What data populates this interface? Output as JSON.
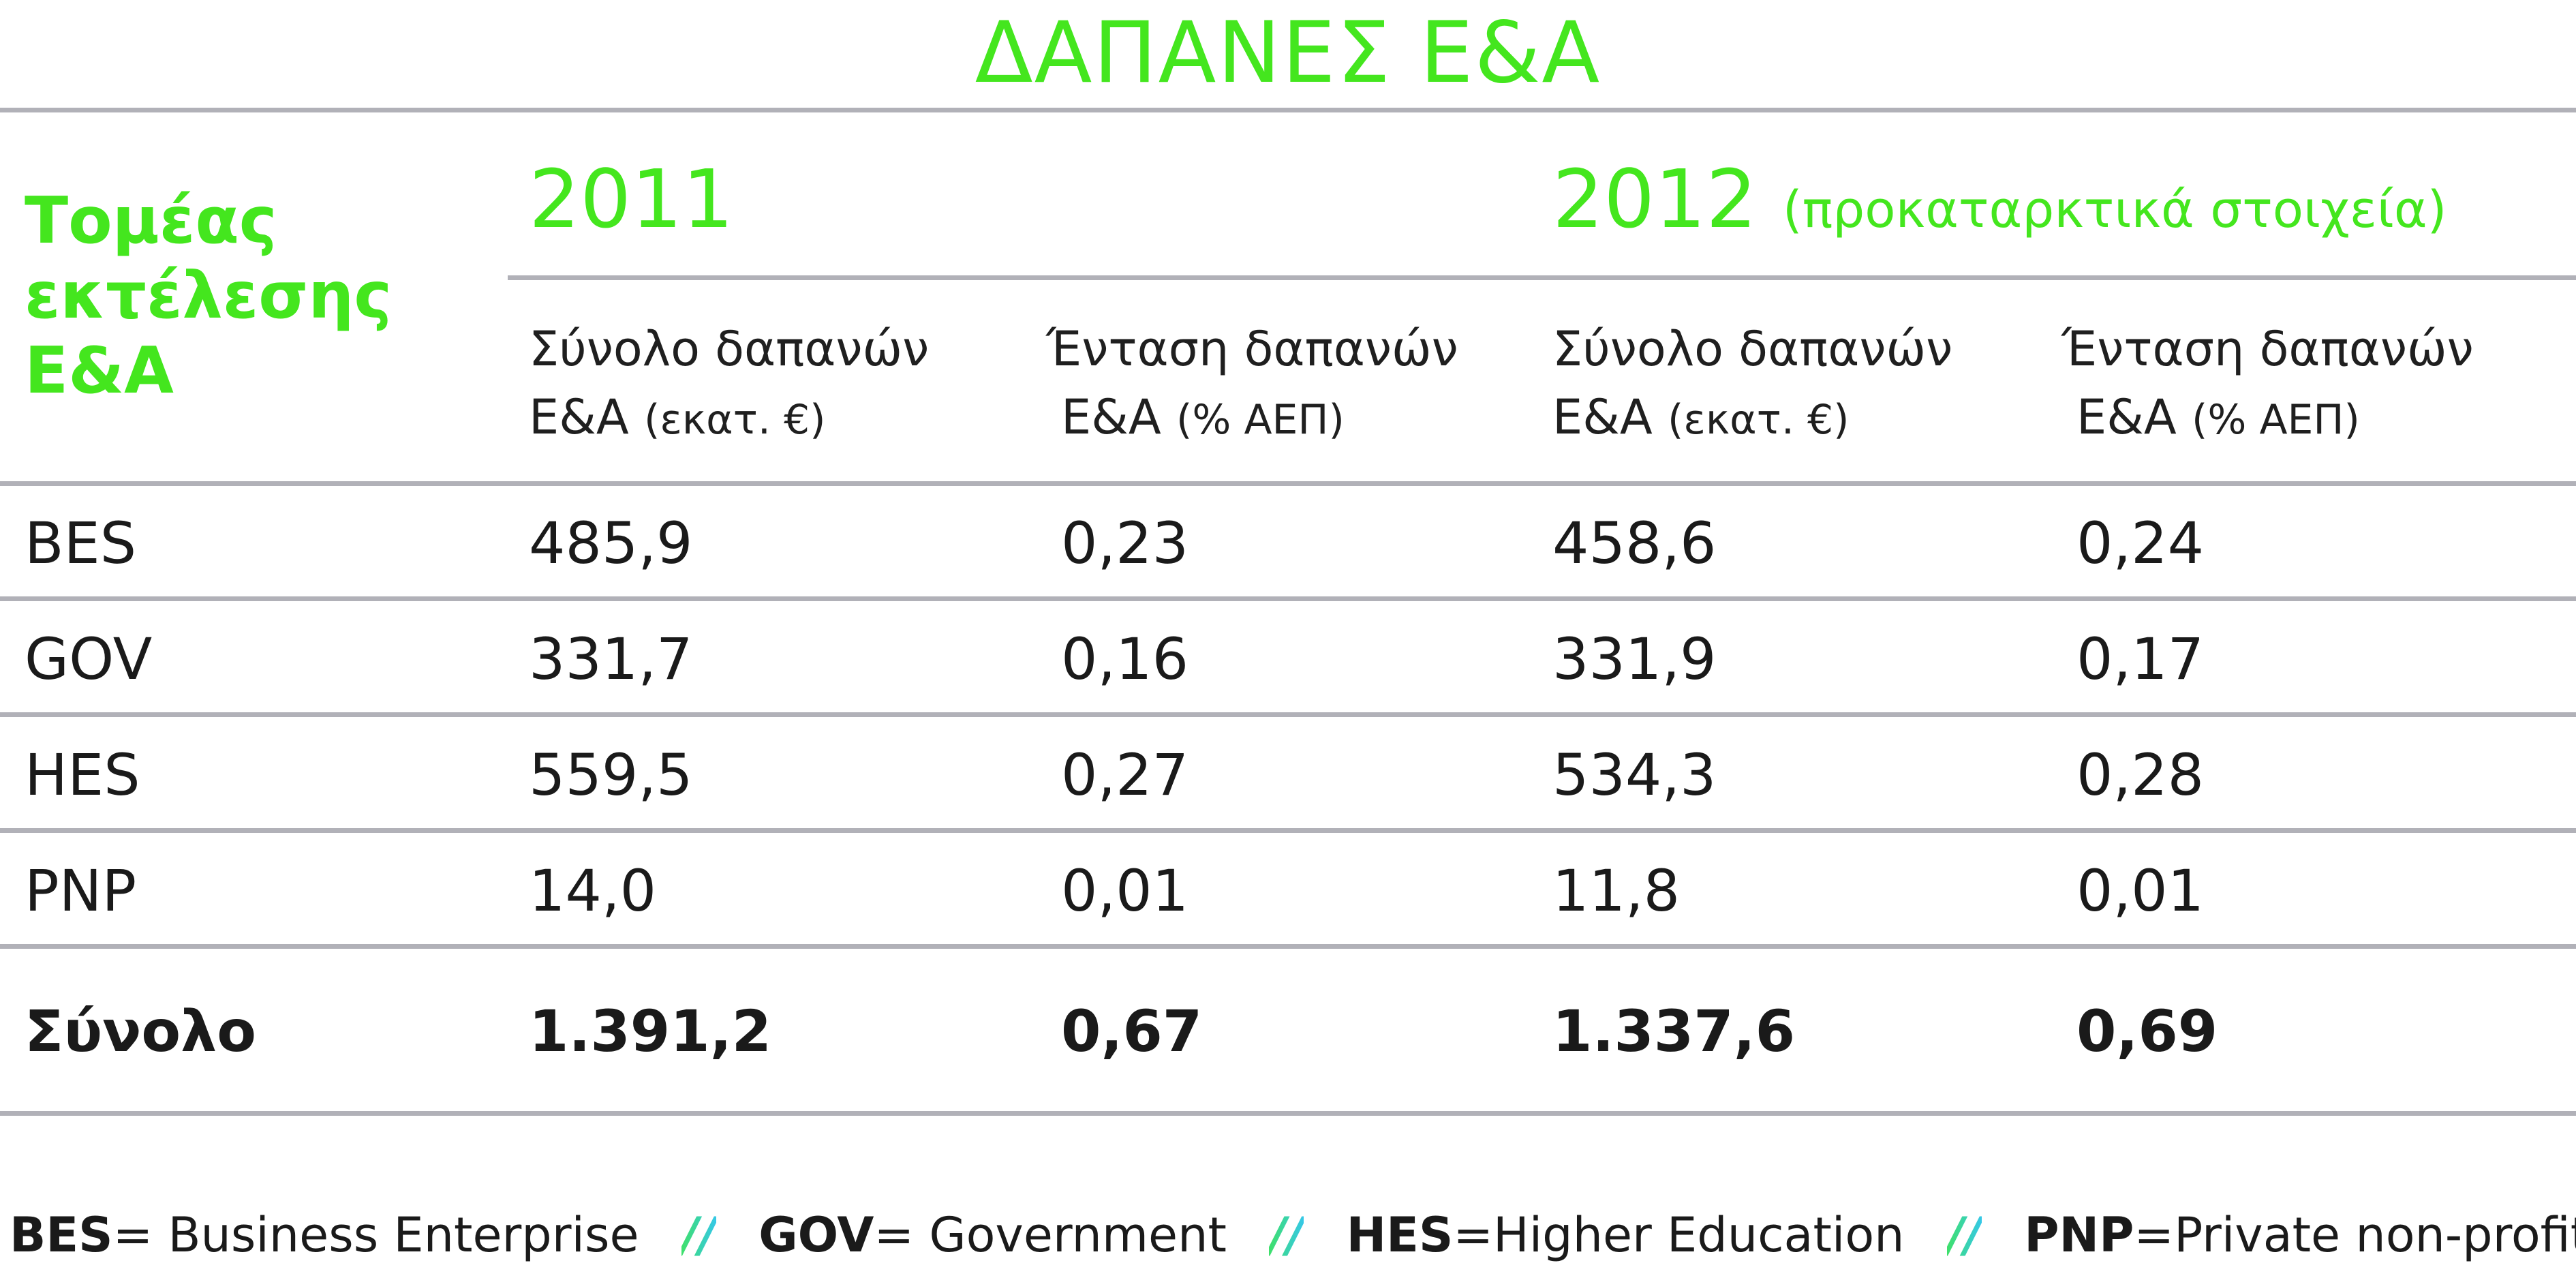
{
  "title": "ΔΑΠΑΝΕΣ Ε&Α",
  "sector_heading": [
    "Τομέας",
    "εκτέλεσης",
    "Ε&Α"
  ],
  "years": [
    {
      "year": "2011",
      "note": ""
    },
    {
      "year": "2012",
      "note": "(προκαταρκτικά στοιχεία)"
    }
  ],
  "column_headers": [
    {
      "line1": "Σύνολο δαπανών",
      "line2_main": "Ε&Α",
      "line2_small": "(εκατ. €)"
    },
    {
      "line1": "Ένταση δαπανών",
      "line2_main": "Ε&Α",
      "line2_small": "(% ΑΕΠ)"
    },
    {
      "line1": "Σύνολο δαπανών",
      "line2_main": "Ε&Α",
      "line2_small": "(εκατ. €)"
    },
    {
      "line1": "Ένταση δαπανών",
      "line2_main": "Ε&Α",
      "line2_small": "(% ΑΕΠ)"
    }
  ],
  "rows": [
    {
      "sector": "BES",
      "v2011_total": "485,9",
      "v2011_intensity": "0,23",
      "v2012_total": "458,6",
      "v2012_intensity": "0,24"
    },
    {
      "sector": "GOV",
      "v2011_total": "331,7",
      "v2011_intensity": "0,16",
      "v2012_total": "331,9",
      "v2012_intensity": "0,17"
    },
    {
      "sector": "HES",
      "v2011_total": "559,5",
      "v2011_intensity": "0,27",
      "v2012_total": "534,3",
      "v2012_intensity": "0,28"
    },
    {
      "sector": "PNP",
      "v2011_total": "14,0",
      "v2011_intensity": "0,01",
      "v2012_total": "11,8",
      "v2012_intensity": "0,01"
    }
  ],
  "total_row": {
    "sector": "Σύνολο",
    "v2011_total": "1.391,2",
    "v2011_intensity": "0,67",
    "v2012_total": "1.337,6",
    "v2012_intensity": "0,69"
  },
  "legend": [
    {
      "abbr": "BES",
      "def": "= Business Enterprise"
    },
    {
      "abbr": "GOV",
      "def": "= Government"
    },
    {
      "abbr": "HES",
      "def": "=Higher Education"
    },
    {
      "abbr": "PNP",
      "def": "=Private non-profit"
    }
  ],
  "legend_separator": "//",
  "colors": {
    "accent_green": "#44e61e",
    "rule_gray": "#b1b1b8",
    "separator_cyan": "#35c8e8"
  }
}
